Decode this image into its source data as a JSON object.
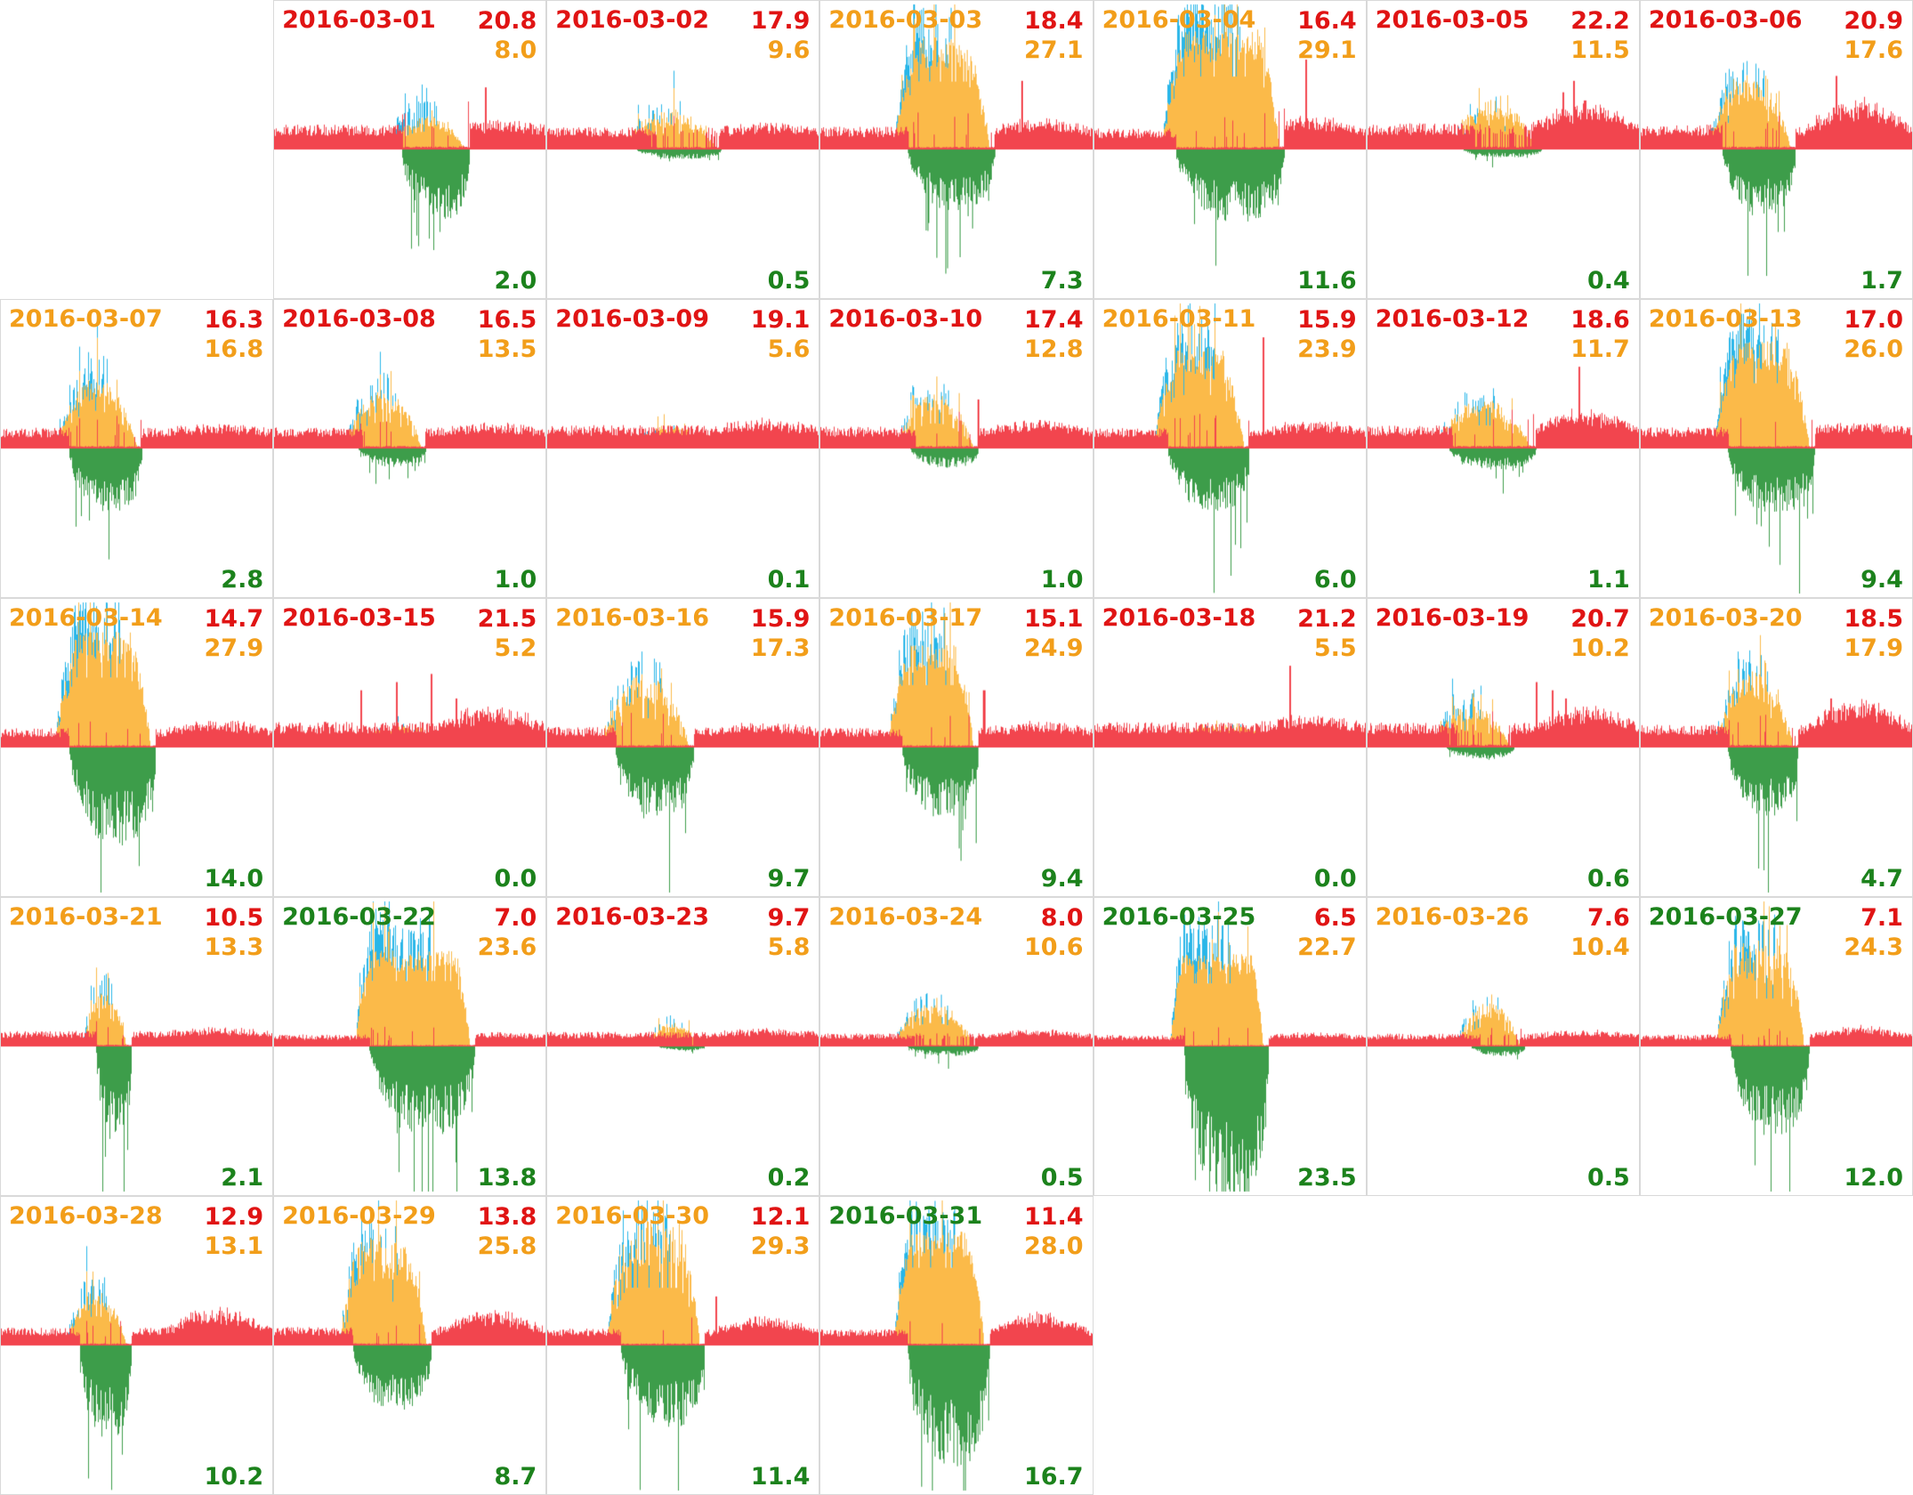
{
  "colors": {
    "background": "#ffffff",
    "cell_border": "#d9d9d9",
    "text_red": "#e01414",
    "text_orange": "#f29e1a",
    "text_green": "#1c821c",
    "area_red": "#f2454e",
    "area_orange": "#fbba49",
    "area_blue": "#29b6e8",
    "area_green": "#3d9d4a"
  },
  "grid": {
    "rows": 5,
    "cols": 7,
    "leading_empty_cells": 1,
    "trailing_empty_cells": 3
  },
  "chart_data": {
    "type": "area",
    "layout": "calendar-small-multiples",
    "axis": {
      "x_ticks_shown": false,
      "y_ticks_shown": false,
      "baseline": "mid-cell, positive above / negative below"
    },
    "series_colors": {
      "red_area": "#f2454e",
      "orange_area": "#fbba49",
      "blue_area": "#29b6e8",
      "green_area": "#3d9d4a"
    },
    "days": [
      {
        "date": "2016-03-01",
        "date_color": "red",
        "values": {
          "top": "20.8",
          "mid": "8.0",
          "bottom": "2.0"
        },
        "shape": {
          "win": [
            0.42,
            0.7
          ],
          "blue": 0.55,
          "plateau": 0,
          "jag": 0.6,
          "rr": 0.06,
          "rs": [
            [
              0.78,
              0.38
            ]
          ]
        }
      },
      {
        "date": "2016-03-02",
        "date_color": "red",
        "values": {
          "top": "17.9",
          "mid": "9.6",
          "bottom": "0.5"
        },
        "shape": {
          "win": [
            0.28,
            0.62
          ],
          "blue": 0.3,
          "plateau": 0,
          "jag": 0.8,
          "rr": 0.06,
          "rs": []
        }
      },
      {
        "date": "2016-03-03",
        "date_color": "orange",
        "values": {
          "top": "18.4",
          "mid": "27.1",
          "bottom": "7.3"
        },
        "shape": {
          "win": [
            0.27,
            0.62
          ],
          "blue": 0.7,
          "plateau": 0.3,
          "jag": 0.5,
          "rr": 0.1,
          "rs": [
            [
              0.74,
              0.42
            ]
          ]
        }
      },
      {
        "date": "2016-03-04",
        "date_color": "orange",
        "values": {
          "top": "16.4",
          "mid": "29.1",
          "bottom": "11.6"
        },
        "shape": {
          "win": [
            0.25,
            0.68
          ],
          "blue": 0.8,
          "plateau": 0.6,
          "jag": 0.5,
          "rr": 0.15,
          "rs": [
            [
              0.78,
              0.55
            ]
          ]
        }
      },
      {
        "date": "2016-03-05",
        "date_color": "red",
        "values": {
          "top": "22.2",
          "mid": "11.5",
          "bottom": "0.4"
        },
        "shape": {
          "win": [
            0.3,
            0.62
          ],
          "blue": 0.25,
          "plateau": 0,
          "jag": 0.8,
          "rr": 0.25,
          "rs": [
            [
              0.72,
              0.35
            ],
            [
              0.76,
              0.42
            ],
            [
              0.8,
              0.3
            ]
          ]
        }
      },
      {
        "date": "2016-03-06",
        "date_color": "red",
        "values": {
          "top": "20.9",
          "mid": "17.6",
          "bottom": "1.7"
        },
        "shape": {
          "win": [
            0.25,
            0.55
          ],
          "blue": 0.5,
          "plateau": 0,
          "jag": 0.7,
          "rr": 0.3,
          "rs": [
            [
              0.72,
              0.45
            ]
          ]
        }
      },
      {
        "date": "2016-03-07",
        "date_color": "orange",
        "values": {
          "top": "16.3",
          "mid": "16.8",
          "bottom": "2.8"
        },
        "shape": {
          "win": [
            0.2,
            0.5
          ],
          "blue": 0.5,
          "plateau": 0,
          "jag": 0.6,
          "rr": 0.06,
          "rs": []
        }
      },
      {
        "date": "2016-03-08",
        "date_color": "red",
        "values": {
          "top": "16.5",
          "mid": "13.5",
          "bottom": "1.0"
        },
        "shape": {
          "win": [
            0.26,
            0.54
          ],
          "blue": 0.45,
          "plateau": 0,
          "jag": 0.7,
          "rr": 0.06,
          "rs": []
        }
      },
      {
        "date": "2016-03-09",
        "date_color": "red",
        "values": {
          "top": "19.1",
          "mid": "5.6",
          "bottom": "0.1"
        },
        "shape": {
          "win": [
            0.3,
            0.6
          ],
          "blue": 0.15,
          "plateau": 0,
          "jag": 0.6,
          "rr": 0.08,
          "rs": []
        }
      },
      {
        "date": "2016-03-10",
        "date_color": "red",
        "values": {
          "top": "17.4",
          "mid": "12.8",
          "bottom": "1.0"
        },
        "shape": {
          "win": [
            0.28,
            0.56
          ],
          "blue": 0.35,
          "plateau": 0,
          "jag": 0.7,
          "rr": 0.08,
          "rs": [
            [
              0.58,
              0.3
            ]
          ]
        }
      },
      {
        "date": "2016-03-11",
        "date_color": "orange",
        "values": {
          "top": "15.9",
          "mid": "23.9",
          "bottom": "6.0"
        },
        "shape": {
          "win": [
            0.22,
            0.55
          ],
          "blue": 0.65,
          "plateau": 0.3,
          "jag": 0.6,
          "rr": 0.1,
          "rs": [
            [
              0.62,
              0.68
            ]
          ]
        }
      },
      {
        "date": "2016-03-12",
        "date_color": "red",
        "values": {
          "top": "18.6",
          "mid": "11.7",
          "bottom": "1.1"
        },
        "shape": {
          "win": [
            0.25,
            0.6
          ],
          "blue": 0.3,
          "plateau": 0,
          "jag": 0.7,
          "rr": 0.2,
          "rs": [
            [
              0.78,
              0.5
            ]
          ]
        }
      },
      {
        "date": "2016-03-13",
        "date_color": "orange",
        "values": {
          "top": "17.0",
          "mid": "26.0",
          "bottom": "9.4"
        },
        "shape": {
          "win": [
            0.27,
            0.62
          ],
          "blue": 0.7,
          "plateau": 0.3,
          "jag": 0.5,
          "rr": 0.06,
          "rs": []
        }
      },
      {
        "date": "2016-03-14",
        "date_color": "orange",
        "values": {
          "top": "14.7",
          "mid": "27.9",
          "bottom": "14.0"
        },
        "shape": {
          "win": [
            0.2,
            0.55
          ],
          "blue": 0.7,
          "plateau": 0.4,
          "jag": 0.5,
          "rr": 0.1,
          "rs": []
        }
      },
      {
        "date": "2016-03-15",
        "date_color": "red",
        "values": {
          "top": "21.5",
          "mid": "5.2",
          "bottom": "0.0"
        },
        "shape": {
          "win": [
            0.28,
            0.66
          ],
          "blue": 0.1,
          "plateau": 0,
          "jag": 0.8,
          "rr": 0.2,
          "rs": [
            [
              0.32,
              0.35
            ],
            [
              0.45,
              0.4
            ],
            [
              0.58,
              0.45
            ],
            [
              0.67,
              0.3
            ]
          ]
        }
      },
      {
        "date": "2016-03-16",
        "date_color": "orange",
        "values": {
          "top": "15.9",
          "mid": "17.3",
          "bottom": "9.7"
        },
        "shape": {
          "win": [
            0.2,
            0.52
          ],
          "blue": 0.4,
          "plateau": 0,
          "jag": 0.8,
          "rr": 0.06,
          "rs": []
        }
      },
      {
        "date": "2016-03-17",
        "date_color": "orange",
        "values": {
          "top": "15.1",
          "mid": "24.9",
          "bottom": "9.4"
        },
        "shape": {
          "win": [
            0.25,
            0.56
          ],
          "blue": 0.65,
          "plateau": 0.4,
          "jag": 0.5,
          "rr": 0.08,
          "rs": [
            [
              0.6,
              0.35
            ]
          ]
        }
      },
      {
        "date": "2016-03-18",
        "date_color": "red",
        "values": {
          "top": "21.2",
          "mid": "5.5",
          "bottom": "0.0"
        },
        "shape": {
          "win": [
            0.25,
            0.7
          ],
          "blue": 0.1,
          "plateau": 0,
          "jag": 0.6,
          "rr": 0.1,
          "rs": [
            [
              0.72,
              0.5
            ]
          ]
        }
      },
      {
        "date": "2016-03-19",
        "date_color": "red",
        "values": {
          "top": "20.7",
          "mid": "10.2",
          "bottom": "0.6"
        },
        "shape": {
          "win": [
            0.24,
            0.52
          ],
          "blue": 0.4,
          "plateau": 0,
          "jag": 0.8,
          "rr": 0.2,
          "rs": [
            [
              0.62,
              0.4
            ],
            [
              0.68,
              0.35
            ],
            [
              0.73,
              0.3
            ]
          ]
        }
      },
      {
        "date": "2016-03-20",
        "date_color": "orange",
        "values": {
          "top": "18.5",
          "mid": "17.9",
          "bottom": "4.7"
        },
        "shape": {
          "win": [
            0.27,
            0.56
          ],
          "blue": 0.45,
          "plateau": 0,
          "jag": 0.7,
          "rr": 0.3,
          "rs": [
            [
              0.7,
              0.3
            ]
          ]
        }
      },
      {
        "date": "2016-03-21",
        "date_color": "orange",
        "values": {
          "top": "10.5",
          "mid": "13.3",
          "bottom": "2.1"
        },
        "shape": {
          "win": [
            0.3,
            0.46
          ],
          "blue": 0.5,
          "plateau": 0,
          "jag": 0.6,
          "rr": 0.05,
          "rs": []
        }
      },
      {
        "date": "2016-03-22",
        "date_color": "green",
        "values": {
          "top": "7.0",
          "mid": "23.6",
          "bottom": "13.8"
        },
        "shape": {
          "win": [
            0.3,
            0.72
          ],
          "blue": 0.7,
          "plateau": 1,
          "jag": 0.4,
          "rr": 0.03,
          "rs": []
        }
      },
      {
        "date": "2016-03-23",
        "date_color": "red",
        "values": {
          "top": "9.7",
          "mid": "5.8",
          "bottom": "0.2"
        },
        "shape": {
          "win": [
            0.36,
            0.56
          ],
          "blue": 0.2,
          "plateau": 0,
          "jag": 0.5,
          "rr": 0.05,
          "rs": []
        }
      },
      {
        "date": "2016-03-24",
        "date_color": "orange",
        "values": {
          "top": "8.0",
          "mid": "10.6",
          "bottom": "0.5"
        },
        "shape": {
          "win": [
            0.27,
            0.56
          ],
          "blue": 0.35,
          "plateau": 0,
          "jag": 0.6,
          "rr": 0.05,
          "rs": []
        }
      },
      {
        "date": "2016-03-25",
        "date_color": "green",
        "values": {
          "top": "6.5",
          "mid": "22.7",
          "bottom": "23.5"
        },
        "shape": {
          "win": [
            0.28,
            0.62
          ],
          "blue": 0.7,
          "plateau": 1,
          "jag": 0.4,
          "rr": 0.03,
          "rs": []
        }
      },
      {
        "date": "2016-03-26",
        "date_color": "orange",
        "values": {
          "top": "7.6",
          "mid": "10.4",
          "bottom": "0.5"
        },
        "shape": {
          "win": [
            0.33,
            0.56
          ],
          "blue": 0.3,
          "plateau": 0,
          "jag": 0.7,
          "rr": 0.05,
          "rs": []
        }
      },
      {
        "date": "2016-03-27",
        "date_color": "green",
        "values": {
          "top": "7.1",
          "mid": "24.3",
          "bottom": "12.0"
        },
        "shape": {
          "win": [
            0.28,
            0.6
          ],
          "blue": 0.65,
          "plateau": 0.5,
          "jag": 0.7,
          "rr": 0.1,
          "rs": []
        }
      },
      {
        "date": "2016-03-28",
        "date_color": "orange",
        "values": {
          "top": "12.9",
          "mid": "13.1",
          "bottom": "10.2"
        },
        "shape": {
          "win": [
            0.24,
            0.46
          ],
          "blue": 0.5,
          "plateau": 0,
          "jag": 0.6,
          "rr": 0.25,
          "rs": []
        }
      },
      {
        "date": "2016-03-29",
        "date_color": "orange",
        "values": {
          "top": "13.8",
          "mid": "25.8",
          "bottom": "8.7"
        },
        "shape": {
          "win": [
            0.24,
            0.56
          ],
          "blue": 0.5,
          "plateau": 0.3,
          "jag": 0.8,
          "rr": 0.2,
          "rs": []
        }
      },
      {
        "date": "2016-03-30",
        "date_color": "orange",
        "values": {
          "top": "12.1",
          "mid": "29.3",
          "bottom": "11.4"
        },
        "shape": {
          "win": [
            0.22,
            0.56
          ],
          "blue": 0.6,
          "plateau": 0.4,
          "jag": 0.7,
          "rr": 0.15,
          "rs": [
            [
              0.62,
              0.3
            ]
          ]
        }
      },
      {
        "date": "2016-03-31",
        "date_color": "green",
        "values": {
          "top": "11.4",
          "mid": "28.0",
          "bottom": "16.7"
        },
        "shape": {
          "win": [
            0.27,
            0.6
          ],
          "blue": 0.6,
          "plateau": 0.5,
          "jag": 0.4,
          "rr": 0.2,
          "rs": []
        }
      }
    ]
  }
}
